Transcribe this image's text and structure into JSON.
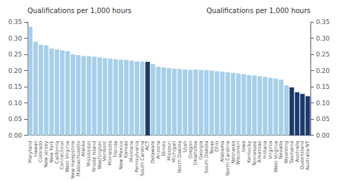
{
  "chart_data": {
    "type": "bar",
    "ylabel": "Qualifications per 1,000 hours",
    "y2label": "Qualifications per 1,000 hours",
    "categories": [
      "Maryland",
      "Hawaii",
      "Colorado",
      "New Jersey",
      "New York",
      "California",
      "Connecticut",
      "West Virginia",
      "New Hampshire",
      "Massachusetts",
      "Alaska",
      "Mississippi",
      "Rhode Island",
      "Washington",
      "Vermont",
      "Minnesota",
      "Florida",
      "New Mexico",
      "Kansas",
      "Montana",
      "Pennsylvania",
      "South Carolina",
      "ACT",
      "Delaware",
      "Arizona",
      "Illinois",
      "Missouri",
      "Michigan",
      "North Dakota",
      "Utah",
      "Oregon",
      "Oklahoma",
      "Georgia",
      "South Dakota",
      "Texas",
      "Ohio",
      "Alabama",
      "North Carolina",
      "Nebraska",
      "Wisconsin",
      "Iowa",
      "Kentucky",
      "Tennessee",
      "Arkansas",
      "Indiana",
      "Virginia",
      "West Virginia",
      "Nevada",
      "Wyoming",
      "Tasmania",
      "Australia",
      "Queensland",
      "Australia NT"
    ],
    "values": [
      0.335,
      0.289,
      0.28,
      0.278,
      0.268,
      0.265,
      0.263,
      0.26,
      0.25,
      0.248,
      0.245,
      0.244,
      0.243,
      0.241,
      0.238,
      0.237,
      0.235,
      0.234,
      0.233,
      0.231,
      0.228,
      0.228,
      0.227,
      0.22,
      0.212,
      0.21,
      0.208,
      0.206,
      0.205,
      0.203,
      0.202,
      0.203,
      0.202,
      0.202,
      0.2,
      0.198,
      0.197,
      0.195,
      0.193,
      0.191,
      0.189,
      0.186,
      0.185,
      0.183,
      0.181,
      0.178,
      0.175,
      0.172,
      0.154,
      0.148,
      0.133,
      0.128,
      0.121
    ],
    "colors": [
      "#a8cfe8",
      "#a8cfe8",
      "#a8cfe8",
      "#a8cfe8",
      "#a8cfe8",
      "#a8cfe8",
      "#a8cfe8",
      "#a8cfe8",
      "#a8cfe8",
      "#a8cfe8",
      "#a8cfe8",
      "#a8cfe8",
      "#a8cfe8",
      "#a8cfe8",
      "#a8cfe8",
      "#a8cfe8",
      "#a8cfe8",
      "#a8cfe8",
      "#a8cfe8",
      "#a8cfe8",
      "#a8cfe8",
      "#a8cfe8",
      "#1b3a6b",
      "#a8cfe8",
      "#a8cfe8",
      "#a8cfe8",
      "#a8cfe8",
      "#a8cfe8",
      "#a8cfe8",
      "#a8cfe8",
      "#a8cfe8",
      "#a8cfe8",
      "#a8cfe8",
      "#a8cfe8",
      "#a8cfe8",
      "#a8cfe8",
      "#a8cfe8",
      "#a8cfe8",
      "#a8cfe8",
      "#a8cfe8",
      "#a8cfe8",
      "#a8cfe8",
      "#a8cfe8",
      "#a8cfe8",
      "#a8cfe8",
      "#a8cfe8",
      "#a8cfe8",
      "#a8cfe8",
      "#a8cfe8",
      "#1b3a6b",
      "#1b3a6b",
      "#1b3a6b",
      "#1b3a6b"
    ],
    "ylim": [
      0,
      0.35
    ],
    "yticks": [
      {
        "value": 0,
        "label": "0.00"
      },
      0.05,
      {
        "value": 0.1,
        "label": "0.10"
      },
      0.15,
      {
        "value": 0.2,
        "label": "0.20"
      },
      0.25,
      {
        "value": 0.3,
        "label": "0.30"
      },
      0.35
    ],
    "y2lim": [
      0,
      0.35
    ],
    "y2ticks": [
      {
        "value": 0,
        "label": "0.00"
      },
      0.05,
      {
        "value": 0.1,
        "label": "0.10"
      },
      0.15,
      {
        "value": 0.2,
        "label": "0.20"
      },
      0.25,
      {
        "value": 0.3,
        "label": "0.30"
      },
      0.35
    ],
    "grid": false
  }
}
